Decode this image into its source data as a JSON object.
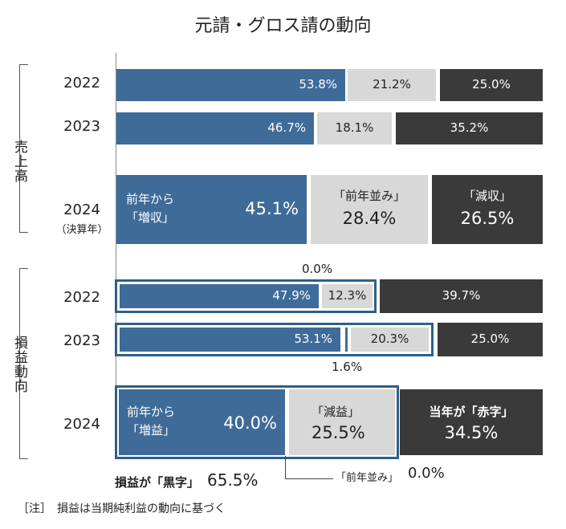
{
  "title": "元請・グロス請の動向",
  "groups": {
    "sales": "売上高",
    "profit": "損益動向"
  },
  "chart_data": {
    "type": "bar",
    "stacked": true,
    "orientation": "horizontal",
    "title": "元請・グロス請の動向",
    "sales": [
      {
        "year": "2022",
        "year_sub": "",
        "values": [
          53.8,
          21.2,
          25.0
        ],
        "labels": [
          "53.8%",
          "21.2%",
          "25.0%"
        ]
      },
      {
        "year": "2023",
        "year_sub": "",
        "values": [
          46.7,
          18.1,
          35.2
        ],
        "labels": [
          "46.7%",
          "18.1%",
          "35.2%"
        ]
      },
      {
        "year": "2024",
        "year_sub": "（決算年）",
        "values": [
          45.1,
          28.4,
          26.5
        ],
        "labels": [
          "45.1%",
          "28.4%",
          "26.5%"
        ],
        "categories": [
          "前年から\n「増収」",
          "「前年並み」",
          "「減収」"
        ]
      }
    ],
    "profit": [
      {
        "year": "2022",
        "values": [
          47.9,
          0.0,
          12.3,
          39.7
        ],
        "labels": [
          "47.9%",
          "0.0%",
          "12.3%",
          "39.7%"
        ]
      },
      {
        "year": "2023",
        "values": [
          53.1,
          1.6,
          20.3,
          25.0
        ],
        "labels": [
          "53.1%",
          "1.6%",
          "20.3%",
          "25.0%"
        ]
      },
      {
        "year": "2024",
        "values": [
          40.0,
          25.5,
          0.0,
          34.5
        ],
        "labels": [
          "40.0%",
          "25.5%",
          "0.0%",
          "34.5%"
        ],
        "categories": [
          "前年から\n「増益」",
          "「減益」",
          "「前年並み」",
          "当年が「赤字」"
        ]
      }
    ],
    "black_total": {
      "label": "損益が「黒字」",
      "value": "65.5%"
    }
  },
  "labels": {
    "increase_sales_1": "前年から",
    "increase_sales_2": "「増収」",
    "flat_sales": "「前年並み」",
    "decrease_sales": "「減収」",
    "increase_profit_1": "前年から",
    "increase_profit_2": "「増益」",
    "decrease_profit": "「減益」",
    "deficit": "当年が「赤字」",
    "flat_profit": "「前年並み」",
    "flat_profit_value": "0.0%",
    "black_label": "損益が「黒字」",
    "black_value": "65.5%"
  },
  "note": "［注］　損益は当期純利益の動向に基づく"
}
